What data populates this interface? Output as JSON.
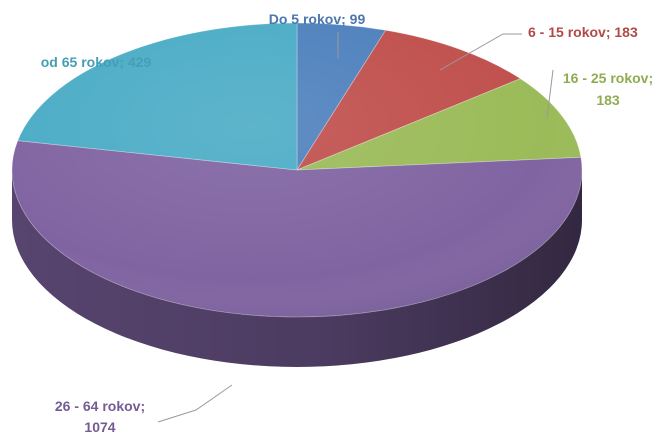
{
  "chart_data": {
    "type": "pie",
    "title": "",
    "three_d": true,
    "start": "12 o'clock",
    "direction": "clockwise",
    "legend": "none",
    "slices": [
      {
        "label": "Do 5 rokov",
        "value": 99,
        "color": "#4f81bd",
        "text": [
          "Do 5 rokov; 99"
        ]
      },
      {
        "label": "6 - 15 rokov",
        "value": 183,
        "color": "#c0504d",
        "text": [
          "6 - 15 rokov; 183"
        ]
      },
      {
        "label": "16 - 25 rokov",
        "value": 183,
        "color": "#9bbb59",
        "text": [
          "16 - 25 rokov;",
          "183"
        ]
      },
      {
        "label": "26 - 64 rokov",
        "value": 1074,
        "color": "#8064a2",
        "text": [
          "26 - 64 rokov;",
          "1074"
        ]
      },
      {
        "label": "od 65 rokov",
        "value": 429,
        "color": "#4bacc6",
        "text": [
          "od 65 rokov; 429"
        ]
      }
    ]
  }
}
